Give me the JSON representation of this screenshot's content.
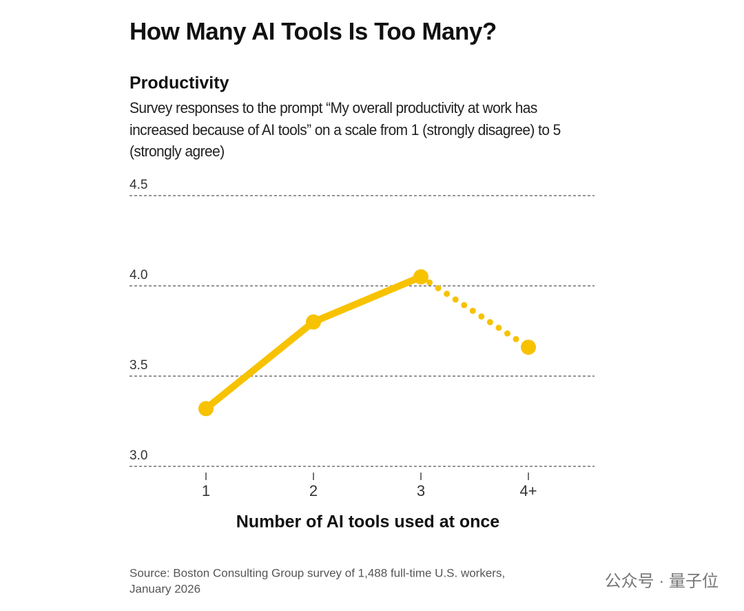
{
  "chart_data": {
    "type": "line",
    "title": "How Many AI Tools Is Too Many?",
    "subtitle": "Productivity",
    "description": "Survey responses to the prompt “My overall productivity at work has increased because of AI tools” on a scale from 1 (strongly disagree) to 5 (strongly agree)",
    "x_label": "Number of AI tools used at once",
    "categories": [
      "1",
      "2",
      "3",
      "4+"
    ],
    "values": [
      3.32,
      3.8,
      4.05,
      3.66
    ],
    "color": "#f7c200",
    "ylim": [
      3.0,
      4.5
    ],
    "yticks": [
      {
        "value": 3.0,
        "label": "3.0"
      },
      3.5,
      {
        "value": 4.0,
        "label": "4.0"
      },
      4.5
    ],
    "grid": true,
    "source": [
      "Source: Boston Consulting Group survey of 1,488 full-time U.S. workers,",
      "January 2026"
    ],
    "watermark": "公众号 · 量子位"
  }
}
